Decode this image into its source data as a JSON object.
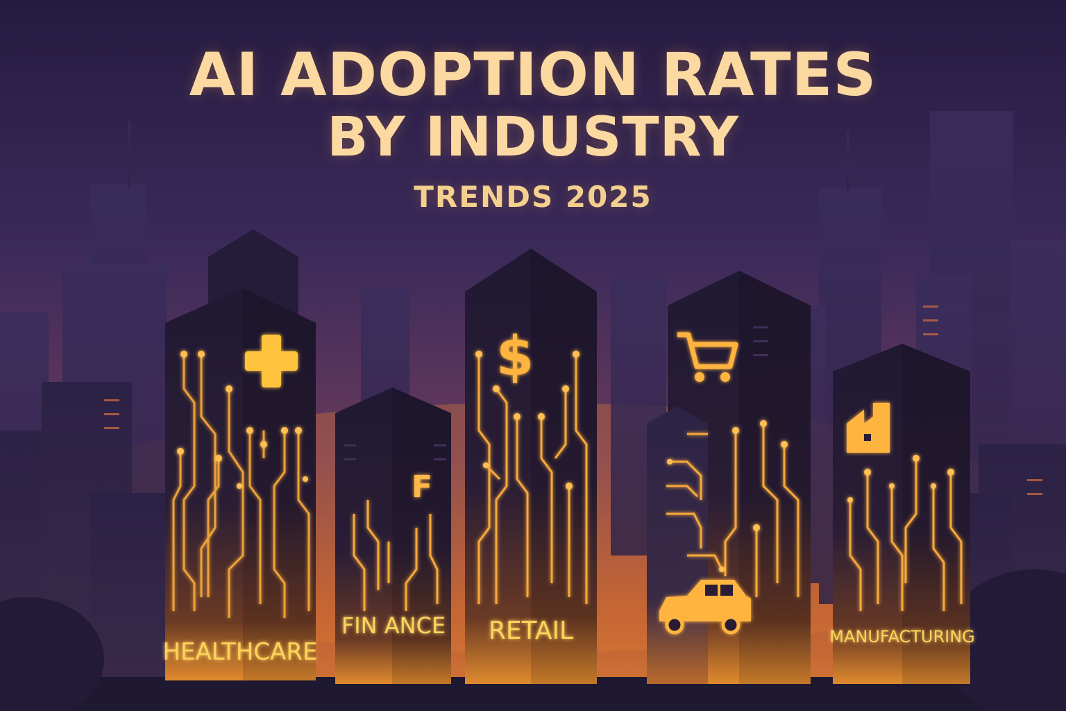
{
  "title": {
    "line1": "AI ADOPTION RATES",
    "line2": "BY INDUSTRY",
    "subtitle": "TRENDS 2025"
  },
  "colors": {
    "sky_top": "#261c41",
    "sky_bottom": "#c4622f",
    "building": "#211a35",
    "building_side": "#2d2447",
    "glow": "#ffb347",
    "title": "#fcd9a0"
  },
  "towers": [
    {
      "id": "healthcare",
      "label": "HEALTHCARE",
      "icon": "medical-cross-icon"
    },
    {
      "id": "finance",
      "label": "FIN ANCE",
      "icon": "letter-f-icon",
      "icon_text": "F"
    },
    {
      "id": "retail",
      "label": "RETAIL",
      "icon": "dollar-sign-icon",
      "icon_text": "$"
    },
    {
      "id": "automotive",
      "label": "",
      "icon": "shopping-cart-icon",
      "icon2": "car-icon"
    },
    {
      "id": "manufacturing",
      "label": "MANUFACTURING",
      "icon": "factory-icon"
    }
  ]
}
